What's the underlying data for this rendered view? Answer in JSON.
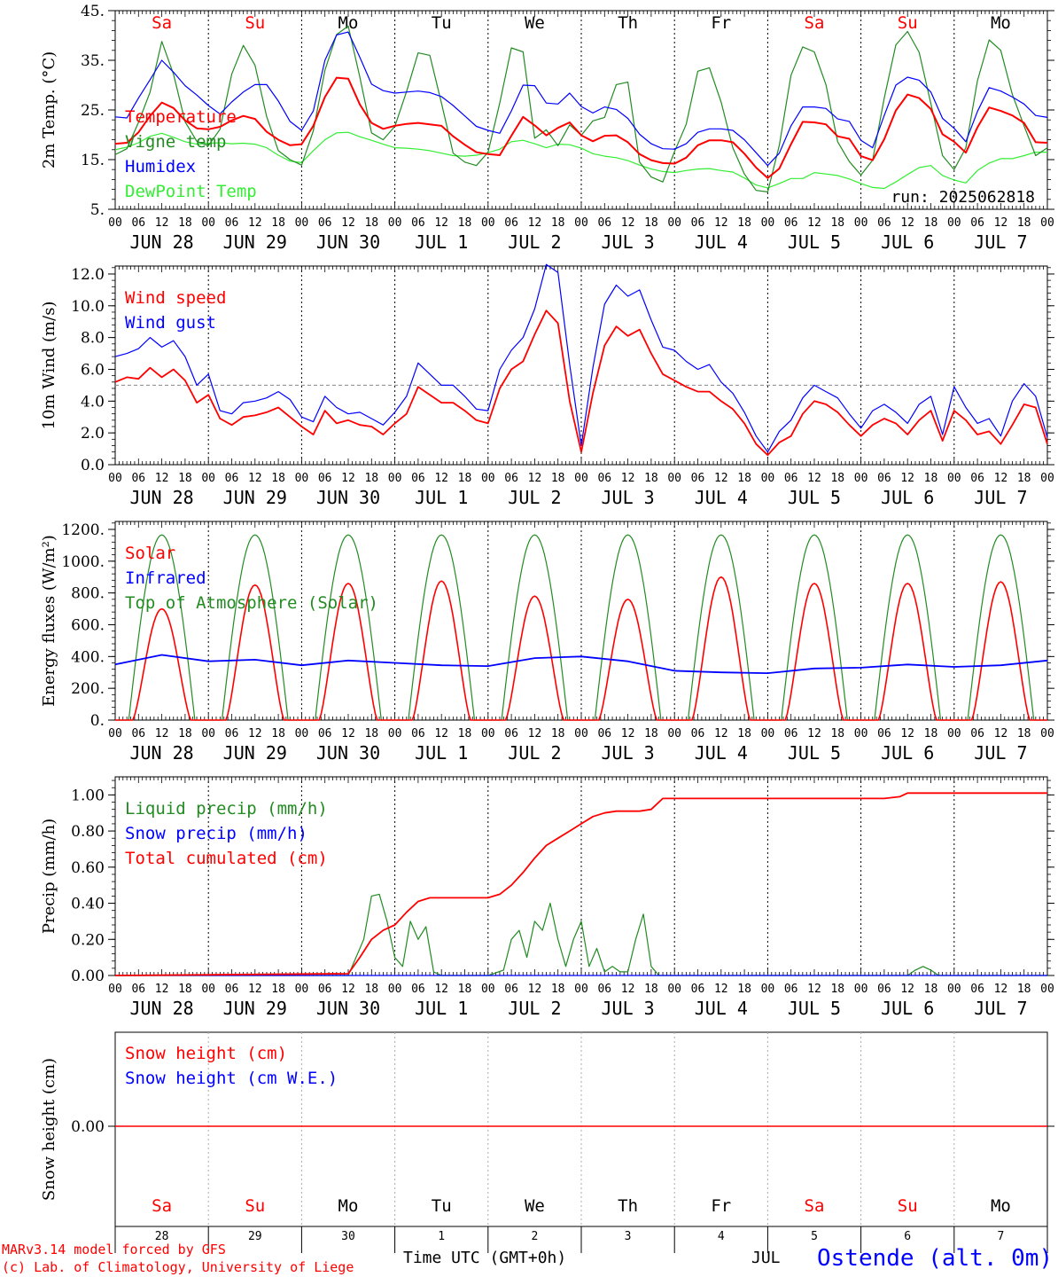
{
  "colors": {
    "red": "#ff0000",
    "green": "#228b22",
    "blue": "#0000ff",
    "lightgreen": "#33ee33",
    "black": "#000000",
    "grey": "#888888"
  },
  "weekdays": [
    "Sa",
    "Su",
    "Mo",
    "Tu",
    "We",
    "Th",
    "Fr",
    "Sa",
    "Su",
    "Mo"
  ],
  "weekday_colors": [
    "red",
    "red",
    "black",
    "black",
    "black",
    "black",
    "black",
    "red",
    "red",
    "black"
  ],
  "hour_ticks": [
    "00",
    "06",
    "12",
    "18"
  ],
  "date_labels": [
    "JUN 28",
    "JUN 29",
    "JUN 30",
    "JUL  1",
    "JUL  2",
    "JUL  3",
    "JUL  4",
    "JUL  5",
    "JUL  6",
    "JUL  7"
  ],
  "day_numbers": [
    "28",
    "29",
    "30",
    "1",
    "2",
    "3",
    "4",
    "5",
    "6",
    "7"
  ],
  "footer": {
    "model": "MARv3.14 model forced by GFS",
    "lab": "(c) Lab. of Climatology, University of Liege",
    "xlabel": "Time UTC (GMT+0h)",
    "month": "JUL",
    "station": "Ostende (alt. 0m)"
  },
  "chart_data": [
    {
      "type": "line",
      "ylabel": "2m Temp. (°C)",
      "ylim": [
        5,
        45
      ],
      "yticks": [
        5,
        15,
        25,
        35,
        45
      ],
      "ytick_labels": [
        "5.",
        "15.",
        "25.",
        "35.",
        "45."
      ],
      "annotation": "run: 2025062818",
      "x_hours": [
        0,
        3,
        6,
        9,
        12,
        15,
        18,
        21,
        24,
        27,
        30,
        33,
        36,
        39,
        42,
        45,
        48,
        51,
        54,
        57,
        60,
        63,
        66,
        69,
        72,
        75,
        78,
        81,
        84,
        87,
        90,
        93,
        96,
        99,
        102,
        105,
        108,
        111,
        114,
        117,
        120,
        123,
        126,
        129,
        132,
        135,
        138,
        141,
        144,
        147,
        150,
        153,
        156,
        159,
        162,
        165,
        168,
        171,
        174,
        177,
        180,
        183,
        186,
        189,
        192,
        195,
        198,
        201,
        204,
        207,
        210,
        213,
        216,
        219,
        222,
        225,
        228,
        231,
        234,
        237,
        240
      ],
      "series": [
        {
          "name": "Temperature",
          "color": "red",
          "values": [
            18.2,
            18.4,
            20.5,
            23.8,
            26.5,
            25.4,
            22.9,
            21.3,
            21.1,
            21.6,
            22.9,
            23.8,
            23.2,
            20.6,
            19.0,
            17.9,
            18.1,
            21.8,
            27.6,
            31.5,
            31.3,
            26.1,
            22.4,
            21.2,
            21.8,
            22.2,
            22.4,
            22.1,
            21.8,
            19.7,
            18.0,
            16.5,
            16.1,
            15.9,
            19.8,
            23.6,
            21.9,
            19.9,
            21.4,
            22.5,
            19.9,
            18.7,
            19.8,
            19.9,
            18.5,
            16.1,
            14.9,
            14.3,
            14.2,
            15.4,
            17.9,
            18.9,
            18.9,
            18.5,
            16.2,
            13.4,
            11.3,
            13.2,
            18.1,
            22.6,
            22.5,
            22.1,
            19.7,
            19.2,
            15.7,
            14.9,
            19.1,
            24.9,
            28.1,
            27.4,
            25.2,
            20.1,
            18.6,
            16.4,
            21.5,
            25.5,
            24.8,
            23.9,
            22.4,
            18.5,
            18.4
          ]
        },
        {
          "name": "Vigne temp",
          "color": "green",
          "values": [
            16.0,
            17.2,
            22.5,
            28.6,
            38.8,
            32.2,
            22.6,
            18.7,
            17.8,
            21.1,
            32.2,
            38.0,
            34.0,
            23.7,
            16.8,
            15.0,
            13.9,
            20.8,
            33.0,
            40.2,
            41.9,
            31.6,
            20.4,
            19.0,
            21.7,
            28.7,
            36.5,
            36.0,
            26.4,
            16.3,
            14.5,
            13.8,
            16.5,
            26.4,
            37.5,
            36.7,
            19.3,
            21.0,
            17.8,
            22.0,
            19.9,
            22.8,
            23.5,
            30.1,
            30.6,
            14.5,
            11.5,
            10.5,
            16.6,
            22.1,
            32.8,
            33.5,
            26.6,
            17.4,
            12.1,
            8.8,
            8.5,
            17.9,
            32.0,
            37.7,
            36.7,
            30.1,
            18.6,
            14.6,
            11.9,
            14.9,
            27.4,
            38.1,
            40.8,
            36.6,
            26.3,
            15.8,
            13.0,
            17.4,
            30.9,
            39.1,
            37.0,
            28.1,
            21.8,
            15.8,
            17.4
          ]
        },
        {
          "name": "Humidex",
          "color": "blue",
          "values": [
            23.6,
            23.4,
            27.4,
            31.1,
            35.0,
            32.6,
            29.9,
            28.0,
            25.9,
            24.2,
            26.6,
            28.6,
            30.1,
            30.1,
            26.8,
            22.7,
            20.9,
            24.8,
            35.0,
            40.1,
            40.7,
            35.6,
            30.2,
            28.9,
            28.4,
            28.6,
            28.8,
            28.5,
            27.7,
            25.9,
            23.8,
            21.7,
            20.9,
            20.3,
            24.8,
            30.0,
            29.9,
            26.4,
            26.2,
            28.4,
            25.7,
            24.4,
            25.6,
            25.1,
            23.3,
            20.1,
            18.2,
            17.2,
            17.1,
            18.2,
            20.5,
            21.2,
            21.2,
            20.9,
            19.0,
            16.4,
            13.8,
            16.3,
            21.8,
            25.6,
            25.6,
            25.3,
            23.2,
            22.7,
            18.9,
            17.4,
            23.9,
            30.0,
            31.6,
            31.0,
            28.6,
            23.3,
            21.3,
            18.6,
            24.7,
            29.5,
            28.8,
            27.6,
            26.2,
            23.9,
            23.5
          ]
        },
        {
          "name": "DewPoint Temp",
          "color": "lightgreen",
          "values": [
            17.0,
            17.5,
            18.4,
            19.7,
            20.3,
            19.5,
            18.6,
            18.1,
            18.3,
            18.4,
            18.2,
            18.3,
            18.1,
            17.4,
            15.9,
            14.7,
            14.4,
            16.8,
            19.0,
            20.4,
            20.5,
            19.6,
            18.9,
            18.1,
            17.4,
            17.3,
            17.1,
            16.8,
            16.3,
            15.8,
            15.7,
            15.9,
            16.4,
            17.1,
            18.6,
            18.9,
            18.2,
            17.4,
            18.1,
            18.0,
            17.3,
            16.2,
            15.7,
            15.4,
            14.8,
            13.9,
            13.1,
            12.6,
            12.4,
            12.8,
            13.1,
            13.2,
            12.8,
            12.5,
            11.3,
            9.9,
            9.3,
            10.2,
            11.2,
            11.2,
            12.4,
            12.1,
            11.8,
            11.1,
            10.2,
            9.4,
            9.2,
            10.5,
            12.0,
            13.4,
            13.8,
            11.8,
            10.9,
            10.3,
            12.8,
            14.3,
            15.2,
            15.2,
            15.8,
            16.5,
            16.5
          ]
        }
      ]
    },
    {
      "type": "line",
      "ylabel": "10m Wind (m/s)",
      "ylim": [
        0,
        12.5
      ],
      "yticks": [
        0,
        2,
        4,
        6,
        8,
        10,
        12
      ],
      "ytick_labels": [
        "0.0",
        "2.0",
        "4.0",
        "6.0",
        "8.0",
        "10.0",
        "12.0"
      ],
      "reference_line": 5,
      "x_hours": [
        0,
        3,
        6,
        9,
        12,
        15,
        18,
        21,
        24,
        27,
        30,
        33,
        36,
        39,
        42,
        45,
        48,
        51,
        54,
        57,
        60,
        63,
        66,
        69,
        72,
        75,
        78,
        81,
        84,
        87,
        90,
        93,
        96,
        99,
        102,
        105,
        108,
        111,
        114,
        117,
        120,
        123,
        126,
        129,
        132,
        135,
        138,
        141,
        144,
        147,
        150,
        153,
        156,
        159,
        162,
        165,
        168,
        171,
        174,
        177,
        180,
        183,
        186,
        189,
        192,
        195,
        198,
        201,
        204,
        207,
        210,
        213,
        216,
        219,
        222,
        225,
        228,
        231,
        234,
        237,
        240
      ],
      "series": [
        {
          "name": "Wind speed",
          "color": "red",
          "values": [
            5.2,
            5.5,
            5.4,
            6.1,
            5.5,
            6.0,
            5.3,
            3.9,
            4.4,
            2.9,
            2.5,
            3.0,
            3.1,
            3.3,
            3.6,
            3.0,
            2.4,
            1.9,
            3.4,
            2.6,
            2.8,
            2.5,
            2.4,
            1.9,
            2.6,
            3.2,
            4.9,
            4.4,
            3.9,
            3.9,
            3.4,
            2.8,
            2.6,
            4.8,
            6.0,
            6.5,
            8.2,
            9.7,
            8.9,
            4.0,
            0.8,
            4.5,
            7.5,
            8.7,
            8.1,
            8.5,
            7.0,
            5.7,
            5.3,
            4.9,
            4.6,
            4.6,
            4.0,
            3.5,
            2.6,
            1.3,
            0.6,
            1.4,
            1.8,
            3.2,
            4.0,
            3.8,
            3.3,
            2.5,
            1.8,
            2.5,
            2.9,
            2.6,
            1.9,
            2.8,
            3.4,
            1.5,
            3.4,
            2.8,
            1.9,
            2.1,
            1.3,
            2.5,
            3.8,
            3.6,
            1.3
          ]
        },
        {
          "name": "Wind gust",
          "color": "blue",
          "values": [
            6.8,
            7.0,
            7.3,
            8.0,
            7.4,
            7.8,
            6.8,
            5.0,
            5.7,
            3.4,
            3.2,
            3.9,
            4.0,
            4.2,
            4.6,
            4.1,
            3.0,
            2.7,
            4.3,
            3.6,
            3.2,
            3.3,
            2.9,
            2.5,
            3.3,
            4.3,
            6.4,
            5.7,
            5.0,
            5.0,
            4.3,
            3.5,
            3.4,
            6.0,
            7.2,
            8.0,
            9.8,
            12.6,
            12.1,
            6.3,
            1.2,
            6.1,
            10.1,
            11.3,
            10.6,
            11.0,
            9.1,
            7.4,
            7.2,
            6.5,
            6.0,
            6.3,
            5.2,
            4.5,
            3.3,
            1.8,
            0.8,
            2.1,
            2.8,
            4.2,
            5.0,
            4.6,
            4.2,
            3.2,
            2.3,
            3.4,
            3.8,
            3.3,
            2.6,
            3.8,
            4.3,
            1.9,
            4.9,
            3.6,
            2.6,
            2.9,
            1.8,
            4.0,
            5.1,
            4.3,
            1.7
          ]
        }
      ]
    },
    {
      "type": "line",
      "ylabel": "Energy fluxes (W/m²)",
      "ylim": [
        0,
        1250
      ],
      "yticks": [
        0,
        200,
        400,
        600,
        800,
        1000,
        1200
      ],
      "ytick_labels": [
        "0.",
        "200.",
        "400.",
        "600.",
        "800.",
        "1000.",
        "1200."
      ],
      "day_peaks": {
        "solar_peak_hour": 12,
        "top_of_atmosphere": [
          1165,
          1165,
          1165,
          1165,
          1165,
          1165,
          1165,
          1165,
          1165,
          1165
        ],
        "solar": [
          700,
          850,
          860,
          875,
          780,
          760,
          900,
          860,
          860,
          870
        ]
      },
      "series_infrared": {
        "x_hours": [
          0,
          12,
          24,
          36,
          48,
          60,
          72,
          84,
          96,
          108,
          120,
          132,
          144,
          156,
          168,
          180,
          192,
          204,
          216,
          228,
          240
        ],
        "values": [
          350,
          410,
          370,
          380,
          345,
          375,
          360,
          345,
          340,
          390,
          400,
          370,
          310,
          300,
          295,
          325,
          330,
          350,
          335,
          345,
          375
        ]
      },
      "series_names": [
        "Solar",
        "Infrared",
        "Top of Atmosphere (Solar)"
      ],
      "series_colors": [
        "red",
        "blue",
        "green"
      ]
    },
    {
      "type": "line",
      "ylabel": "Precip (mm/h)",
      "ylim": [
        0,
        1.1
      ],
      "yticks": [
        0,
        0.2,
        0.4,
        0.6,
        0.8,
        1.0
      ],
      "ytick_labels": [
        "0.00",
        "0.20",
        "0.40",
        "0.60",
        "0.80",
        "1.00"
      ],
      "series": [
        {
          "name": "Liquid precip (mm/h)",
          "color": "green",
          "x_hours": [
            0,
            60,
            64,
            66,
            68,
            70,
            72,
            74,
            76,
            78,
            80,
            82,
            84,
            90,
            96,
            100,
            102,
            104,
            106,
            108,
            110,
            112,
            114,
            116,
            118,
            120,
            122,
            124,
            126,
            128,
            130,
            132,
            134,
            136,
            138,
            140,
            144,
            204,
            206,
            208,
            210,
            212,
            240
          ],
          "values": [
            0,
            0,
            0.2,
            0.44,
            0.45,
            0.3,
            0.1,
            0.05,
            0.3,
            0.2,
            0.27,
            0.02,
            0,
            0,
            0,
            0.03,
            0.2,
            0.25,
            0.1,
            0.3,
            0.25,
            0.4,
            0.2,
            0.05,
            0.2,
            0.3,
            0.05,
            0.15,
            0.02,
            0.05,
            0.02,
            0.02,
            0.2,
            0.34,
            0.05,
            0,
            0,
            0,
            0.03,
            0.05,
            0.03,
            0,
            0
          ]
        },
        {
          "name": "Snow precip (mm/h)",
          "color": "blue",
          "x_hours": [
            0,
            240
          ],
          "values": [
            0,
            0
          ]
        },
        {
          "name": "Total cumulated (cm)",
          "color": "red",
          "x_hours": [
            0,
            60,
            63,
            66,
            69,
            72,
            75,
            78,
            81,
            96,
            99,
            102,
            105,
            108,
            111,
            114,
            117,
            120,
            123,
            126,
            129,
            132,
            135,
            138,
            141,
            144,
            198,
            202,
            204,
            240
          ],
          "values": [
            0,
            0.01,
            0.1,
            0.2,
            0.25,
            0.28,
            0.35,
            0.41,
            0.43,
            0.43,
            0.45,
            0.5,
            0.57,
            0.65,
            0.72,
            0.76,
            0.8,
            0.84,
            0.88,
            0.9,
            0.91,
            0.91,
            0.91,
            0.92,
            0.98,
            0.98,
            0.98,
            0.99,
            1.01,
            1.01
          ]
        }
      ]
    },
    {
      "type": "line",
      "ylabel": "Snow height (cm)",
      "ytick_labels": [
        "0.00"
      ],
      "series": [
        {
          "name": "Snow height (cm)",
          "color": "red",
          "x_hours": [
            0,
            240
          ],
          "values": [
            0,
            0
          ]
        },
        {
          "name": "Snow height (cm W.E.)",
          "color": "blue",
          "x_hours": [
            0,
            240
          ],
          "values": [
            0,
            0
          ]
        }
      ]
    }
  ]
}
